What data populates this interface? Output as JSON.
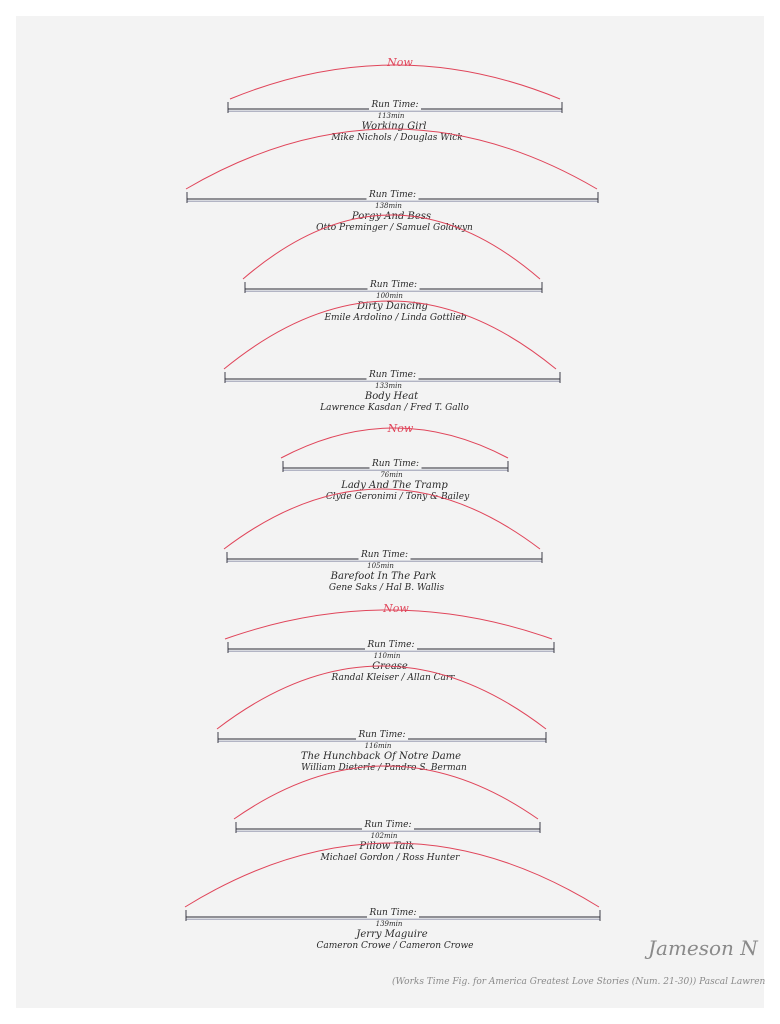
{
  "colors": {
    "paper": "#f3f3f3",
    "arc": "#e0455a",
    "bar": "#2b2b36",
    "ink": "#2a2a2a",
    "pencil": "#8a8a8a"
  },
  "runtime_label": "Run Time:",
  "entries": [
    {
      "runtime": "113min",
      "title": "Working Girl",
      "credits": "Mike Nichols / Douglas Wick",
      "now": "Now"
    },
    {
      "runtime": "138min",
      "title": "Porgy And Bess",
      "credits": "Otto Preminger / Samuel Goldwyn",
      "now": ""
    },
    {
      "runtime": "100min",
      "title": "Dirty Dancing",
      "credits": "Emile Ardolino / Linda Gottlieb",
      "now": ""
    },
    {
      "runtime": "133min",
      "title": "Body Heat",
      "credits": "Lawrence Kasdan / Fred T. Gallo",
      "now": ""
    },
    {
      "runtime": "76min",
      "title": "Lady And The Tramp",
      "credits": "Clyde Geronimi / Tony & Bailey",
      "now": "Now"
    },
    {
      "runtime": "105min",
      "title": "Barefoot In The Park",
      "credits": "Gene Saks / Hal B. Wallis",
      "now": ""
    },
    {
      "runtime": "110min",
      "title": "Grease",
      "credits": "Randal Kleiser / Allan Carr",
      "now": "Now"
    },
    {
      "runtime": "116min",
      "title": "The Hunchback Of Notre Dame",
      "credits": "William Dieterle / Pandro S. Berman",
      "now": ""
    },
    {
      "runtime": "102min",
      "title": "Pillow Talk",
      "credits": "Michael Gordon / Ross Hunter",
      "now": ""
    },
    {
      "runtime": "139min",
      "title": "Jerry Maguire",
      "credits": "Cameron Crowe / Cameron Crowe",
      "now": ""
    }
  ],
  "caption": "(Works Time Fig. for America Greatest Love Stories (Num. 21-30))   Pascal Lawren",
  "signature": "Jameson N"
}
